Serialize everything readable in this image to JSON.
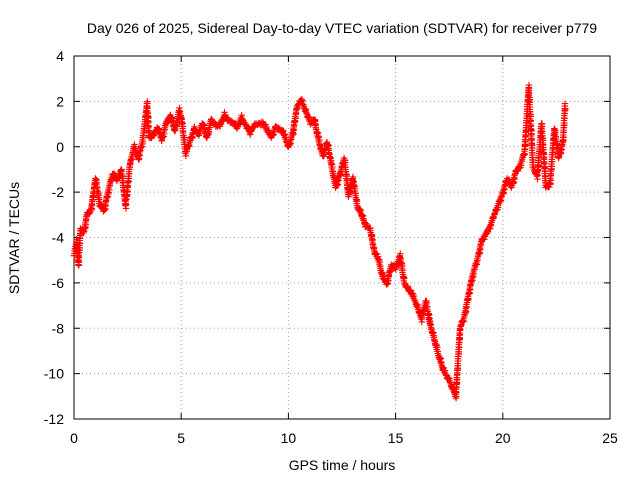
{
  "chart_data": {
    "type": "scatter",
    "title": "Day 026 of 2025, Sidereal Day-to-day VTEC variation (SDTVAR) for receiver p779",
    "xlabel": "GPS time / hours",
    "ylabel": "SDTVAR / TECUs",
    "xlim": [
      0,
      25
    ],
    "ylim": [
      -12,
      4
    ],
    "xticks": [
      "0",
      "5",
      "10",
      "15",
      "20",
      "25"
    ],
    "yticks": [
      "4",
      "2",
      "0",
      "-2",
      "-4",
      "-6",
      "-8",
      "-10",
      "-12"
    ],
    "grid": true,
    "marker": "+",
    "color": "#ff0000",
    "series": [
      {
        "name": "SDTVAR",
        "x": [
          0.0,
          0.1,
          0.2,
          0.3,
          0.45,
          0.6,
          0.8,
          1.0,
          1.2,
          1.4,
          1.6,
          1.8,
          2.0,
          2.2,
          2.4,
          2.6,
          2.8,
          3.0,
          3.2,
          3.4,
          3.5,
          3.7,
          3.9,
          4.1,
          4.3,
          4.5,
          4.7,
          4.9,
          5.0,
          5.2,
          5.4,
          5.6,
          5.8,
          6.0,
          6.2,
          6.4,
          6.6,
          6.8,
          7.0,
          7.2,
          7.4,
          7.6,
          7.8,
          8.0,
          8.2,
          8.4,
          8.6,
          8.8,
          9.0,
          9.2,
          9.4,
          9.6,
          9.8,
          10.0,
          10.2,
          10.4,
          10.6,
          10.8,
          11.0,
          11.2,
          11.4,
          11.6,
          11.8,
          12.0,
          12.2,
          12.4,
          12.6,
          12.8,
          13.0,
          13.2,
          13.4,
          13.6,
          13.8,
          14.0,
          14.2,
          14.4,
          14.6,
          14.8,
          15.0,
          15.2,
          15.4,
          15.6,
          15.8,
          16.0,
          16.2,
          16.4,
          16.6,
          16.8,
          17.0,
          17.2,
          17.5,
          17.8,
          18.0,
          18.2,
          18.4,
          18.6,
          18.8,
          19.0,
          19.2,
          19.4,
          19.6,
          19.8,
          20.0,
          20.2,
          20.4,
          20.6,
          20.8,
          21.0,
          21.2,
          21.4,
          21.6,
          21.8,
          22.0,
          22.2,
          22.4,
          22.6,
          22.8,
          22.9
        ],
        "values": [
          -4.8,
          -4.2,
          -5.2,
          -3.6,
          -3.8,
          -3.0,
          -2.7,
          -1.4,
          -2.6,
          -2.8,
          -1.9,
          -1.2,
          -1.5,
          -1.0,
          -2.6,
          -0.8,
          0.0,
          -0.5,
          0.3,
          1.9,
          0.4,
          0.6,
          0.8,
          0.3,
          1.1,
          1.4,
          0.7,
          1.6,
          1.3,
          -0.3,
          0.2,
          0.8,
          0.6,
          1.0,
          0.4,
          1.2,
          1.0,
          0.9,
          1.4,
          1.2,
          1.1,
          0.8,
          1.3,
          1.0,
          0.6,
          0.9,
          1.0,
          1.1,
          0.7,
          0.4,
          0.9,
          0.8,
          0.5,
          0.0,
          0.6,
          1.8,
          2.0,
          1.6,
          1.1,
          1.2,
          0.3,
          -0.4,
          0.2,
          -0.8,
          -1.8,
          -1.2,
          -0.5,
          -2.2,
          -1.4,
          -2.6,
          -3.0,
          -3.5,
          -3.6,
          -4.6,
          -5.0,
          -5.8,
          -6.0,
          -5.2,
          -5.4,
          -4.8,
          -6.0,
          -6.3,
          -6.6,
          -7.0,
          -7.6,
          -6.8,
          -7.8,
          -8.5,
          -9.2,
          -9.8,
          -10.3,
          -11.0,
          -8.0,
          -7.5,
          -6.5,
          -5.6,
          -5.0,
          -4.2,
          -3.8,
          -3.5,
          -3.0,
          -2.5,
          -2.0,
          -1.4,
          -1.8,
          -1.1,
          -0.8,
          -0.3,
          2.6,
          -0.9,
          -1.3,
          1.0,
          -1.8,
          -1.6,
          0.8,
          -0.5,
          0.2,
          1.9
        ]
      }
    ]
  }
}
